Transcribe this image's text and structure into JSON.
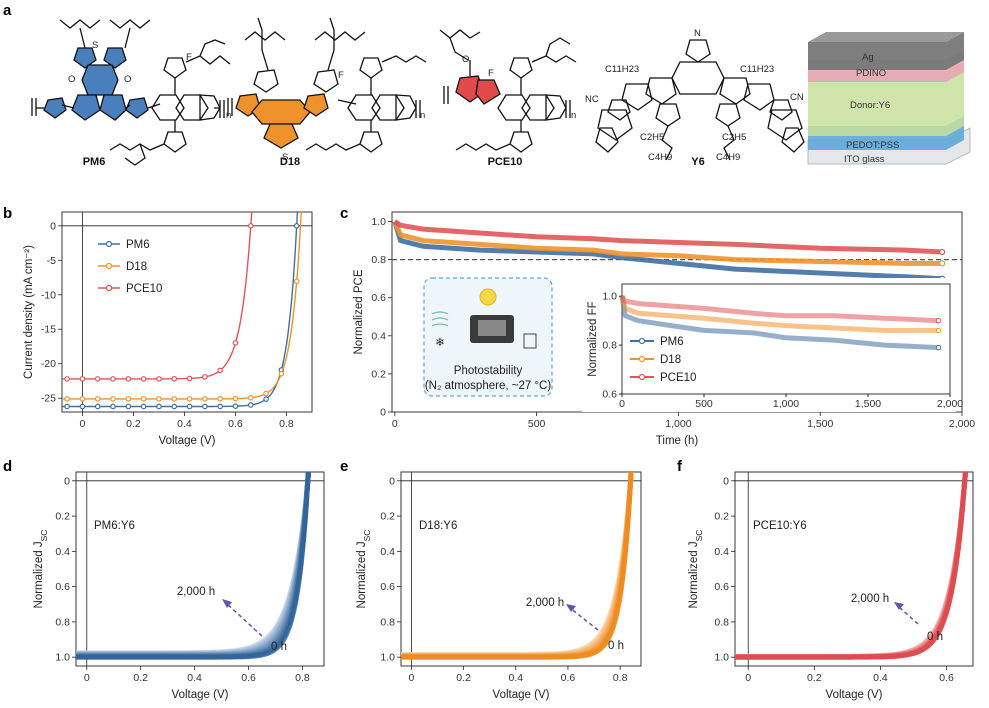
{
  "panels": {
    "a": "a",
    "b": "b",
    "c": "c",
    "d": "d",
    "e": "e",
    "f": "f"
  },
  "colors": {
    "pm6": "#3f6fa3",
    "d18": "#f0922b",
    "pce10": "#e05558",
    "pm6_light": "#7ea0c8",
    "d18_light": "#f6be85",
    "pce10_light": "#ee9598",
    "chem_blue": "#4a7fbd",
    "chem_orange": "#f0922b",
    "chem_red": "#e04a4a"
  },
  "chemicals": {
    "labels": [
      "PM6",
      "D18",
      "PCE10",
      "Y6"
    ],
    "fragments": {
      "s": "S",
      "o": "O",
      "f": "F",
      "n": "N",
      "n_sub": "n",
      "sub_c11": "C11H23",
      "sub_c2": "C2H5",
      "sub_c4": "C4H9",
      "cn": "NC",
      "cn2": "CN"
    }
  },
  "device": {
    "layers": [
      "Ag",
      "PDINO",
      "Donor:Y6",
      "PEDOT:PSS",
      "ITO glass"
    ]
  },
  "chart_data": [
    {
      "id": "b",
      "type": "line",
      "title": "",
      "xlabel": "Voltage (V)",
      "ylabel": "Current density (mA cm⁻²)",
      "xlim": [
        -0.08,
        0.9
      ],
      "ylim": [
        -27,
        2
      ],
      "xticks": [
        0,
        0.2,
        0.4,
        0.6,
        0.8
      ],
      "xtick_labels": [
        "0",
        "0.2",
        "0.4",
        "0.6",
        "0.8"
      ],
      "yticks": [
        0,
        -5,
        -10,
        -15,
        -20,
        -25
      ],
      "ytick_labels": [
        "0",
        "-5",
        "-10",
        "-15",
        "-20",
        "-25"
      ],
      "legend": "top-left",
      "series": [
        {
          "name": "PM6",
          "jsc": -26.2,
          "voc": 0.84,
          "n": 1.45,
          "color": "#3f6fa3"
        },
        {
          "name": "D18",
          "jsc": -25.1,
          "voc": 0.855,
          "n": 1.5,
          "color": "#f0922b"
        },
        {
          "name": "PCE10",
          "jsc": -22.2,
          "voc": 0.66,
          "n": 1.6,
          "color": "#e05558"
        }
      ]
    },
    {
      "id": "c",
      "type": "line",
      "title": "",
      "xlabel": "Time (h)",
      "ylabel": "Normalized PCE",
      "xlim": [
        -10,
        2000
      ],
      "ylim": [
        0,
        1.05
      ],
      "xticks": [
        0,
        500,
        1000,
        1500,
        2000
      ],
      "xtick_labels": [
        "0",
        "500",
        "1,000",
        "1,500",
        "2,000"
      ],
      "yticks": [
        0,
        0.2,
        0.4,
        0.6,
        0.8,
        1.0
      ],
      "ytick_labels": [
        "0",
        "0.2",
        "0.4",
        "0.6",
        "0.8",
        "1.0"
      ],
      "reference_line": 0.8,
      "annotation": {
        "line1": "Photostability",
        "line2": "(N₂ atmosphere, ~27 °C)"
      },
      "series": [
        {
          "name": "PM6",
          "x": [
            0,
            20,
            100,
            300,
            500,
            700,
            800,
            1000,
            1200,
            1500,
            1800,
            1930
          ],
          "y": [
            1.0,
            0.9,
            0.87,
            0.85,
            0.84,
            0.83,
            0.81,
            0.78,
            0.75,
            0.73,
            0.71,
            0.7
          ],
          "color": "#3f6fa3"
        },
        {
          "name": "D18",
          "x": [
            0,
            20,
            100,
            300,
            500,
            700,
            800,
            1000,
            1200,
            1500,
            1800,
            1930
          ],
          "y": [
            1.0,
            0.93,
            0.9,
            0.88,
            0.86,
            0.85,
            0.83,
            0.82,
            0.8,
            0.79,
            0.78,
            0.78
          ],
          "color": "#f0922b"
        },
        {
          "name": "PCE10",
          "x": [
            0,
            20,
            100,
            300,
            500,
            700,
            800,
            1000,
            1200,
            1500,
            1800,
            1930
          ],
          "y": [
            1.0,
            0.98,
            0.96,
            0.94,
            0.92,
            0.91,
            0.9,
            0.89,
            0.88,
            0.86,
            0.85,
            0.84
          ],
          "color": "#e05558"
        }
      ],
      "inset": {
        "ylabel": "Normalized FF",
        "xlim": [
          0,
          2000
        ],
        "ylim": [
          0.6,
          1.05
        ],
        "xticks": [
          0,
          500,
          1000,
          1500,
          2000
        ],
        "xtick_labels": [
          "0",
          "500",
          "1,000",
          "1,500",
          "2,000"
        ],
        "yticks": [
          0.6,
          0.8,
          1.0
        ],
        "ytick_labels": [
          "0.6",
          "0.8",
          "1.0"
        ],
        "legend": "bottom-left",
        "series": [
          {
            "name": "PM6",
            "x": [
              0,
              20,
              100,
              300,
              500,
              800,
              1000,
              1300,
              1600,
              1930
            ],
            "y": [
              1.0,
              0.92,
              0.9,
              0.88,
              0.86,
              0.85,
              0.83,
              0.82,
              0.8,
              0.79
            ],
            "color": "#3f6fa3"
          },
          {
            "name": "D18",
            "x": [
              0,
              20,
              100,
              300,
              500,
              800,
              1000,
              1300,
              1600,
              1930
            ],
            "y": [
              1.0,
              0.95,
              0.93,
              0.92,
              0.91,
              0.89,
              0.88,
              0.87,
              0.86,
              0.86
            ],
            "color": "#f0922b"
          },
          {
            "name": "PCE10",
            "x": [
              0,
              20,
              100,
              300,
              500,
              800,
              1000,
              1300,
              1600,
              1930
            ],
            "y": [
              1.0,
              0.98,
              0.97,
              0.96,
              0.95,
              0.93,
              0.92,
              0.92,
              0.91,
              0.9
            ],
            "color": "#e05558"
          }
        ]
      }
    },
    {
      "id": "d",
      "type": "line",
      "title": "",
      "label": "PM6:Y6",
      "xlabel": "Voltage (V)",
      "ylabel": "Normalized J",
      "ylabel_sub": "SC",
      "xlim": [
        -0.04,
        0.88
      ],
      "ylim": [
        1.05,
        -0.05
      ],
      "xticks": [
        0,
        0.2,
        0.4,
        0.6,
        0.8
      ],
      "xtick_labels": [
        "0",
        "0.2",
        "0.4",
        "0.6",
        "0.8"
      ],
      "yticks": [
        0,
        0.2,
        0.4,
        0.6,
        0.8,
        1.0
      ],
      "ytick_labels": [
        "0",
        "0.2",
        "0.4",
        "0.6",
        "0.8",
        "1.0"
      ],
      "start_label": "0 h",
      "end_label": "2,000 h",
      "curves": {
        "voc": 0.82,
        "n_start": 1.5,
        "n_end": 2.4,
        "offset_end": 0.025,
        "count": 12
      }
    },
    {
      "id": "e",
      "type": "line",
      "title": "",
      "label": "D18:Y6",
      "xlabel": "Voltage (V)",
      "ylabel": "Normalized J",
      "ylabel_sub": "SC",
      "xlim": [
        -0.04,
        0.88
      ],
      "ylim": [
        1.05,
        -0.05
      ],
      "xticks": [
        0,
        0.2,
        0.4,
        0.6,
        0.8
      ],
      "xtick_labels": [
        "0",
        "0.2",
        "0.4",
        "0.6",
        "0.8"
      ],
      "yticks": [
        0,
        0.2,
        0.4,
        0.6,
        0.8,
        1.0
      ],
      "ytick_labels": [
        "0",
        "0.2",
        "0.4",
        "0.6",
        "0.8",
        "1.0"
      ],
      "start_label": "0 h",
      "end_label": "2,000 h",
      "curves": {
        "voc": 0.84,
        "n_start": 1.45,
        "n_end": 2.1,
        "offset_end": 0.015,
        "count": 12
      }
    },
    {
      "id": "f",
      "type": "line",
      "title": "",
      "label": "PCE10:Y6",
      "xlabel": "Voltage (V)",
      "ylabel": "Normalized J",
      "ylabel_sub": "SC",
      "xlim": [
        -0.04,
        0.68
      ],
      "ylim": [
        1.05,
        -0.05
      ],
      "xticks": [
        0,
        0.2,
        0.4,
        0.6
      ],
      "xtick_labels": [
        "0",
        "0.2",
        "0.4",
        "0.6"
      ],
      "yticks": [
        0,
        0.2,
        0.4,
        0.6,
        0.8,
        1.0
      ],
      "ytick_labels": [
        "0",
        "0.2",
        "0.4",
        "0.6",
        "0.8",
        "1.0"
      ],
      "start_label": "0 h",
      "end_label": "2,000 h",
      "curves": {
        "voc": 0.655,
        "n_start": 1.55,
        "n_end": 1.85,
        "offset_end": 0.005,
        "count": 12
      }
    }
  ]
}
